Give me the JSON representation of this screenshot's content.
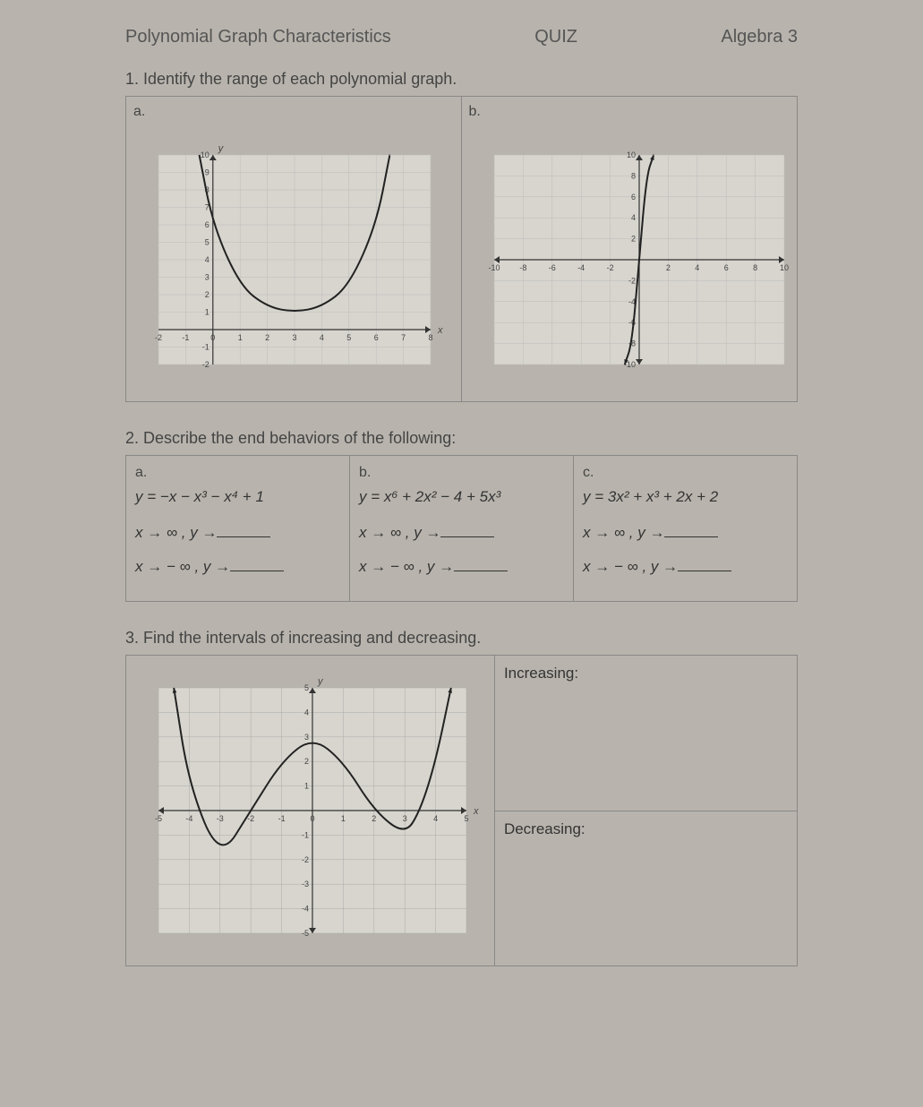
{
  "header": {
    "left": "Polynomial Graph Characteristics",
    "center": "QUIZ",
    "right": "Algebra 3"
  },
  "q1": {
    "prompt": "1.  Identify the range of each polynomial graph.",
    "a": {
      "label": "a.",
      "chart": {
        "type": "line",
        "xlim": [
          -2,
          8
        ],
        "ylim": [
          -2,
          10
        ],
        "xticks": [
          -2,
          -1,
          0,
          1,
          2,
          3,
          4,
          5,
          6,
          7,
          8
        ],
        "yticks": [
          -2,
          -1,
          0,
          1,
          2,
          3,
          4,
          5,
          6,
          7,
          8,
          9,
          10
        ],
        "axis_labels": {
          "x": "x",
          "y": "y"
        },
        "curve_color": "#222",
        "grid_color": "#bbb",
        "background": "#d8d5ce",
        "points": [
          [
            -0.5,
            10
          ],
          [
            0,
            6
          ],
          [
            1,
            2.5
          ],
          [
            2,
            1.3
          ],
          [
            3,
            1
          ],
          [
            4,
            1.3
          ],
          [
            5,
            2.5
          ],
          [
            6,
            6
          ],
          [
            6.5,
            10
          ]
        ]
      }
    },
    "b": {
      "label": "b.",
      "chart": {
        "type": "line",
        "xlim": [
          -10,
          10
        ],
        "ylim": [
          -10,
          10
        ],
        "xticks": [
          -10,
          -8,
          -6,
          -4,
          -2,
          2,
          4,
          6,
          8,
          10
        ],
        "yticks": [
          -10,
          -8,
          -6,
          -4,
          -2,
          2,
          4,
          6,
          8,
          10
        ],
        "curve_color": "#222",
        "grid_color": "#bbb",
        "background": "#d8d5ce",
        "points": [
          [
            -1,
            -10
          ],
          [
            -0.5,
            -8
          ],
          [
            0,
            0
          ],
          [
            0.5,
            8
          ],
          [
            1,
            10
          ]
        ]
      }
    }
  },
  "q2": {
    "prompt": "2.  Describe the end behaviors of the following:",
    "cols": [
      {
        "label": "a.",
        "equation": "y = −x − x³ − x⁴ + 1"
      },
      {
        "label": "b.",
        "equation": "y = x⁶ + 2x² − 4 + 5x³"
      },
      {
        "label": "c.",
        "equation": "y = 3x² + x³ + 2x + 2"
      }
    ],
    "limit1": "x → ∞ , y →",
    "limit2": "x → − ∞ , y →"
  },
  "q3": {
    "prompt": "3.  Find the intervals of increasing and decreasing.",
    "chart": {
      "type": "line",
      "xlim": [
        -5,
        5
      ],
      "ylim": [
        -5,
        5
      ],
      "xticks": [
        -5,
        -4,
        -3,
        -2,
        -1,
        0,
        1,
        2,
        3,
        4,
        5
      ],
      "yticks": [
        -5,
        -4,
        -3,
        -2,
        -1,
        0,
        1,
        2,
        3,
        4,
        5
      ],
      "axis_labels": {
        "x": "x",
        "y": "y"
      },
      "curve_color": "#222",
      "grid_color": "#aaa",
      "background": "#d8d5ce",
      "points": [
        [
          -4.5,
          5
        ],
        [
          -4,
          1
        ],
        [
          -3,
          -2
        ],
        [
          -2,
          0
        ],
        [
          -1,
          2
        ],
        [
          0,
          3
        ],
        [
          1,
          2
        ],
        [
          2,
          0
        ],
        [
          3,
          -1
        ],
        [
          3.5,
          0
        ],
        [
          4,
          2
        ],
        [
          4.5,
          5
        ]
      ]
    },
    "increasing_label": "Increasing:",
    "decreasing_label": "Decreasing:"
  }
}
